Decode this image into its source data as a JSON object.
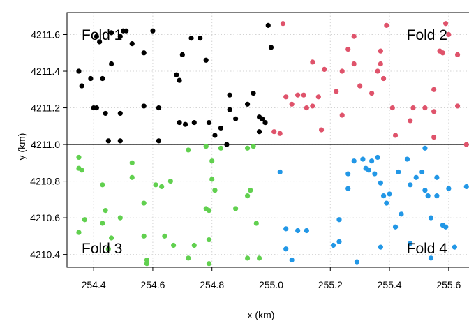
{
  "chart_data": {
    "type": "scatter",
    "title": "",
    "xlabel": "x (km)",
    "ylabel": "y (km)",
    "xlim": [
      254.31,
      255.69
    ],
    "ylim": [
      4210.33,
      4211.72
    ],
    "xticks": [
      254.4,
      254.6,
      254.8,
      255.0,
      255.2,
      255.4,
      255.6
    ],
    "xtick_labels": [
      "254.4",
      "254.6",
      "254.8",
      "255.0",
      "255.2",
      "255.4",
      "255.6"
    ],
    "yticks": [
      4210.4,
      4210.6,
      4210.8,
      4211.0,
      4211.2,
      4211.4,
      4211.6
    ],
    "ytick_labels": [
      "4210.4",
      "4210.6",
      "4210.8",
      "4211.0",
      "4211.2",
      "4211.4",
      "4211.6"
    ],
    "grid": true,
    "divider_x": 255.0,
    "divider_y": 4211.0,
    "annotations": [
      {
        "text": "Fold 1",
        "anchor": "top-left"
      },
      {
        "text": "Fold 2",
        "anchor": "top-right"
      },
      {
        "text": "Fold 3",
        "anchor": "bottom-left"
      },
      {
        "text": "Fold 4",
        "anchor": "bottom-right"
      }
    ],
    "series": [
      {
        "color": "#000000",
        "points": [
          [
            254.35,
            4211.4
          ],
          [
            254.41,
            4211.59
          ],
          [
            254.46,
            4211.61
          ],
          [
            254.49,
            4211.59
          ],
          [
            254.5,
            4211.62
          ],
          [
            254.51,
            4211.62
          ],
          [
            254.36,
            4211.32
          ],
          [
            254.39,
            4211.36
          ],
          [
            254.43,
            4211.36
          ],
          [
            254.46,
            4211.44
          ],
          [
            254.53,
            4211.55
          ],
          [
            254.42,
            4211.56
          ],
          [
            254.57,
            4211.5
          ],
          [
            254.6,
            4211.62
          ],
          [
            254.68,
            4211.38
          ],
          [
            254.69,
            4211.35
          ],
          [
            254.73,
            4211.58
          ],
          [
            254.76,
            4211.58
          ],
          [
            254.7,
            4211.49
          ],
          [
            254.78,
            4211.46
          ],
          [
            254.4,
            4211.2
          ],
          [
            254.41,
            4211.2
          ],
          [
            254.44,
            4211.17
          ],
          [
            254.49,
            4211.17
          ],
          [
            254.57,
            4211.21
          ],
          [
            254.62,
            4211.2
          ],
          [
            254.69,
            4211.12
          ],
          [
            254.71,
            4211.11
          ],
          [
            254.74,
            4211.12
          ],
          [
            254.79,
            4211.12
          ],
          [
            254.83,
            4211.09
          ],
          [
            254.86,
            4211.27
          ],
          [
            254.86,
            4211.19
          ],
          [
            254.88,
            4211.14
          ],
          [
            254.92,
            4211.22
          ],
          [
            254.94,
            4211.28
          ],
          [
            254.96,
            4211.15
          ],
          [
            254.97,
            4211.14
          ],
          [
            254.98,
            4211.12
          ],
          [
            254.99,
            4211.65
          ],
          [
            255.0,
            4211.53
          ],
          [
            254.45,
            4211.02
          ],
          [
            254.49,
            4211.02
          ],
          [
            254.62,
            4211.02
          ],
          [
            254.81,
            4211.05
          ],
          [
            254.85,
            4211.0
          ],
          [
            254.96,
            4211.07
          ]
        ]
      },
      {
        "color": "#df536b",
        "points": [
          [
            255.04,
            4211.66
          ],
          [
            255.01,
            4211.07
          ],
          [
            255.03,
            4211.06
          ],
          [
            255.05,
            4211.26
          ],
          [
            255.07,
            4211.22
          ],
          [
            255.09,
            4211.27
          ],
          [
            255.11,
            4211.27
          ],
          [
            255.12,
            4211.2
          ],
          [
            255.14,
            4211.45
          ],
          [
            255.14,
            4211.21
          ],
          [
            255.16,
            4211.26
          ],
          [
            255.18,
            4211.41
          ],
          [
            255.17,
            4211.08
          ],
          [
            255.22,
            4211.29
          ],
          [
            255.24,
            4211.4
          ],
          [
            255.24,
            4211.16
          ],
          [
            255.26,
            4211.52
          ],
          [
            255.28,
            4211.59
          ],
          [
            255.28,
            4211.44
          ],
          [
            255.3,
            4211.32
          ],
          [
            255.34,
            4211.28
          ],
          [
            255.36,
            4211.4
          ],
          [
            255.37,
            4211.44
          ],
          [
            255.37,
            4211.51
          ],
          [
            255.38,
            4211.36
          ],
          [
            255.39,
            4211.65
          ],
          [
            255.41,
            4211.2
          ],
          [
            255.42,
            4211.05
          ],
          [
            255.47,
            4211.13
          ],
          [
            255.48,
            4211.2
          ],
          [
            255.52,
            4211.2
          ],
          [
            255.55,
            4211.3
          ],
          [
            255.55,
            4211.18
          ],
          [
            255.55,
            4211.04
          ],
          [
            255.57,
            4211.51
          ],
          [
            255.58,
            4211.5
          ],
          [
            255.59,
            4211.66
          ],
          [
            255.6,
            4211.6
          ],
          [
            255.63,
            4211.49
          ],
          [
            255.63,
            4211.21
          ],
          [
            255.66,
            4211.0
          ]
        ]
      },
      {
        "color": "#61d04f",
        "points": [
          [
            254.35,
            4210.93
          ],
          [
            254.35,
            4210.87
          ],
          [
            254.36,
            4210.86
          ],
          [
            254.35,
            4210.52
          ],
          [
            254.37,
            4210.59
          ],
          [
            254.43,
            4210.78
          ],
          [
            254.44,
            4210.64
          ],
          [
            254.43,
            4210.57
          ],
          [
            254.46,
            4210.49
          ],
          [
            254.45,
            4210.43
          ],
          [
            254.49,
            4210.6
          ],
          [
            254.53,
            4210.9
          ],
          [
            254.53,
            4210.82
          ],
          [
            254.57,
            4210.68
          ],
          [
            254.57,
            4210.5
          ],
          [
            254.58,
            4210.37
          ],
          [
            254.58,
            4210.35
          ],
          [
            254.61,
            4210.78
          ],
          [
            254.63,
            4210.77
          ],
          [
            254.64,
            4210.5
          ],
          [
            254.66,
            4210.8
          ],
          [
            254.67,
            4210.45
          ],
          [
            254.72,
            4210.97
          ],
          [
            254.72,
            4210.38
          ],
          [
            254.74,
            4210.45
          ],
          [
            254.78,
            4210.99
          ],
          [
            254.78,
            4210.65
          ],
          [
            254.79,
            4210.64
          ],
          [
            254.79,
            4210.48
          ],
          [
            254.79,
            4210.35
          ],
          [
            254.8,
            4210.91
          ],
          [
            254.8,
            4210.81
          ],
          [
            254.81,
            4210.75
          ],
          [
            254.83,
            4210.98
          ],
          [
            254.88,
            4210.65
          ],
          [
            254.92,
            4210.72
          ],
          [
            254.93,
            4210.75
          ],
          [
            254.92,
            4210.98
          ],
          [
            254.94,
            4210.99
          ],
          [
            254.95,
            4210.57
          ],
          [
            254.92,
            4210.38
          ],
          [
            254.96,
            4210.38
          ]
        ]
      },
      {
        "color": "#2297e6",
        "points": [
          [
            255.03,
            4210.85
          ],
          [
            255.05,
            4210.54
          ],
          [
            255.05,
            4210.43
          ],
          [
            255.07,
            4210.37
          ],
          [
            255.09,
            4210.53
          ],
          [
            255.12,
            4210.53
          ],
          [
            255.21,
            4210.45
          ],
          [
            255.23,
            4210.47
          ],
          [
            255.23,
            4210.59
          ],
          [
            255.26,
            4210.84
          ],
          [
            255.26,
            4210.76
          ],
          [
            255.28,
            4210.91
          ],
          [
            255.31,
            4210.92
          ],
          [
            255.32,
            4210.87
          ],
          [
            255.33,
            4210.86
          ],
          [
            255.34,
            4210.91
          ],
          [
            255.35,
            4210.84
          ],
          [
            255.29,
            4210.36
          ],
          [
            255.36,
            4210.93
          ],
          [
            255.37,
            4210.79
          ],
          [
            255.37,
            4210.44
          ],
          [
            255.38,
            4210.72
          ],
          [
            255.39,
            4210.68
          ],
          [
            255.4,
            4210.73
          ],
          [
            255.42,
            4210.55
          ],
          [
            255.43,
            4210.85
          ],
          [
            255.44,
            4210.62
          ],
          [
            255.46,
            4210.92
          ],
          [
            255.47,
            4210.78
          ],
          [
            255.47,
            4210.46
          ],
          [
            255.49,
            4210.82
          ],
          [
            255.51,
            4210.85
          ],
          [
            255.52,
            4210.75
          ],
          [
            255.53,
            4210.72
          ],
          [
            255.52,
            4210.98
          ],
          [
            255.56,
            4210.82
          ],
          [
            255.56,
            4210.72
          ],
          [
            255.58,
            4210.56
          ],
          [
            255.59,
            4210.55
          ],
          [
            255.6,
            4210.76
          ],
          [
            255.62,
            4210.44
          ],
          [
            255.66,
            4210.77
          ],
          [
            255.54,
            4210.6
          ],
          [
            255.54,
            4210.38
          ]
        ]
      }
    ]
  }
}
